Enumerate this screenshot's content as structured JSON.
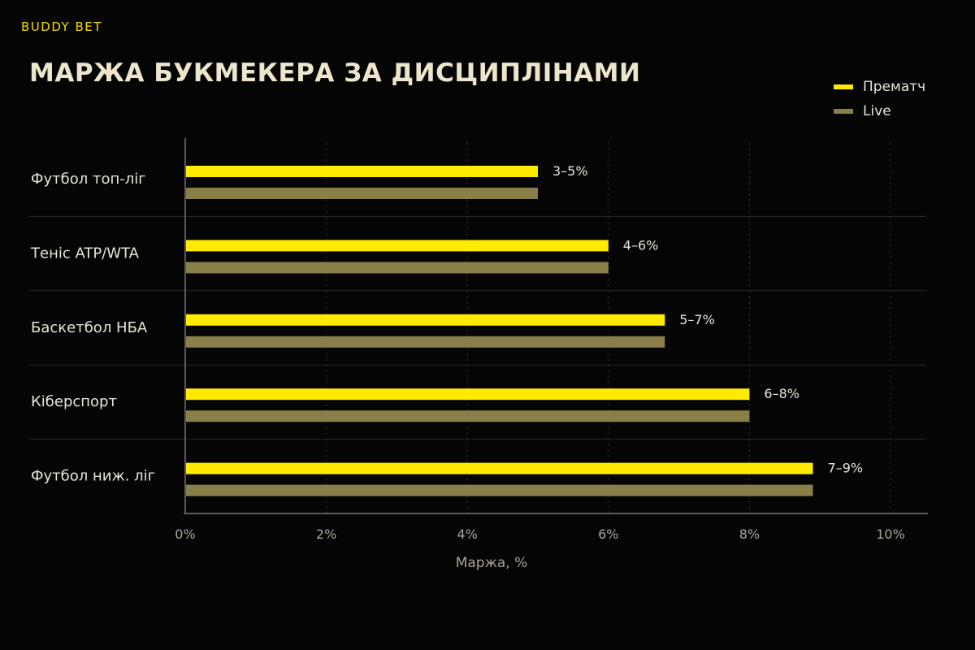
{
  "brand": "BUDDY BET",
  "title": "МАРЖА БУКМЕКЕРА ЗА ДИСЦИПЛІНАМИ",
  "colors": {
    "background": "#050505",
    "prematch": "#ffea00",
    "live": "#8a7f49",
    "text": "#e8e4d8",
    "muted": "#a9a496",
    "title": "#ede6cc",
    "brand": "#f2dc00"
  },
  "legend": [
    {
      "label": "Прематч",
      "color": "#ffea00"
    },
    {
      "label": "Live",
      "color": "#8a7f49"
    }
  ],
  "chart_data": {
    "type": "bar",
    "orientation": "horizontal",
    "categories": [
      "Футбол топ-ліг",
      "Теніс ATP/WTA",
      "Баскетбол НБА",
      "Кіберспорт",
      "Футбол ниж. ліг"
    ],
    "series": [
      {
        "name": "Прематч",
        "values": [
          5.0,
          6.0,
          6.8,
          8.0,
          8.9
        ]
      },
      {
        "name": "Live",
        "values": [
          5.0,
          6.0,
          6.8,
          8.0,
          8.9
        ]
      }
    ],
    "data_labels": [
      "3–5%",
      "4–6%",
      "5–7%",
      "6–8%",
      "7–9%"
    ],
    "xlabel": "Маржа, %",
    "xlim": [
      0,
      10
    ],
    "xticks": [
      0,
      2,
      4,
      6,
      8,
      10
    ],
    "xtick_labels": [
      "0%",
      "2%",
      "4%",
      "6%",
      "8%",
      "10%"
    ],
    "grid": true,
    "legend_position": "top-right"
  }
}
